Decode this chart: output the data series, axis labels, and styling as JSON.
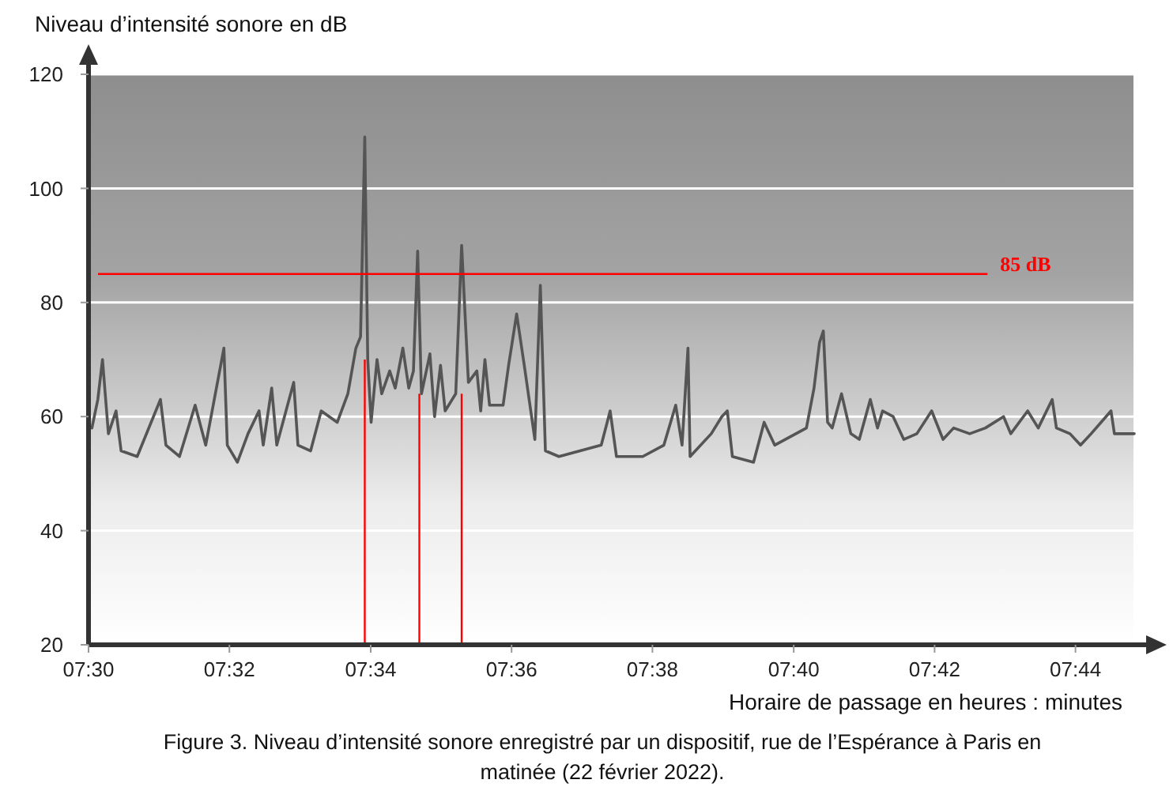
{
  "chart_data": {
    "type": "line",
    "ylabel": "Niveau d’intensité sonore en dB",
    "xlabel": "Horaire de passage en heures : minutes",
    "annotations": [
      "Figure 3. Niveau d’intensité sonore enregistré par un dispositif, rue de l’Espérance à Paris en matinée (22 février 2022)."
    ],
    "xlim": [
      7.5,
      7.75
    ],
    "ylim": [
      20,
      120
    ],
    "xticks": [
      {
        "value": 7.5,
        "label": "07:30"
      },
      {
        "value": 7.5333,
        "label": "07:32"
      },
      {
        "value": 7.5667,
        "label": "07:34"
      },
      {
        "value": 7.6,
        "label": "07:36"
      },
      {
        "value": 7.6333,
        "label": "07:38"
      },
      {
        "value": 7.6667,
        "label": "07:40"
      },
      {
        "value": 7.7,
        "label": "07:42"
      },
      {
        "value": 7.7333,
        "label": "07:44"
      }
    ],
    "yticks": [
      20,
      40,
      60,
      80,
      100,
      120
    ],
    "grid": "y",
    "marker": "none",
    "line_style": "solid",
    "ref_lines": [
      {
        "axis": "y",
        "value": 85,
        "label": "85 dB",
        "color": "#ff0000"
      },
      {
        "axis": "x",
        "value": 7.5653,
        "color": "#ff0000"
      },
      {
        "axis": "x",
        "value": 7.5782,
        "color": "#ff0000"
      },
      {
        "axis": "x",
        "value": 7.5882,
        "color": "#ff0000"
      }
    ],
    "series": [
      {
        "color": "#555555",
        "x": [
          7.5008,
          7.5022,
          7.5033,
          7.5047,
          7.5065,
          7.5077,
          7.5115,
          7.517,
          7.5183,
          7.5215,
          7.5252,
          7.5277,
          7.532,
          7.5328,
          7.5352,
          7.5377,
          7.5403,
          7.5413,
          7.5433,
          7.5445,
          7.5485,
          7.5495,
          7.5525,
          7.555,
          7.5588,
          7.5613,
          7.5632,
          7.5643,
          7.5653,
          7.566,
          7.5668,
          7.5682,
          7.5693,
          7.5712,
          7.5725,
          7.5743,
          7.5757,
          7.5768,
          7.5778,
          7.5787,
          7.5807,
          7.5818,
          7.5832,
          7.5843,
          7.5868,
          7.5882,
          7.5898,
          7.5918,
          7.5927,
          7.5937,
          7.5948,
          7.598,
          7.5993,
          7.6012,
          7.603,
          7.6055,
          7.6068,
          7.608,
          7.6112,
          7.6162,
          7.6212,
          7.6233,
          7.6248,
          7.631,
          7.636,
          7.6388,
          7.6403,
          7.6417,
          7.6422,
          7.6472,
          7.6497,
          7.651,
          7.6522,
          7.6572,
          7.6597,
          7.6622,
          7.6672,
          7.6697,
          7.6715,
          7.6728,
          7.6737,
          7.6747,
          7.6758,
          7.678,
          7.6802,
          7.6822,
          7.6848,
          7.6865,
          7.6877,
          7.6902,
          7.6927,
          7.6958,
          7.6993,
          7.702,
          7.7045,
          7.7083,
          7.712,
          7.7163,
          7.718,
          7.722,
          7.7245,
          7.7278,
          7.7288,
          7.732,
          7.7345,
          7.737,
          7.7417,
          7.7425,
          7.7472
        ],
        "values": [
          58,
          63,
          70,
          57,
          61,
          54,
          53,
          63,
          55,
          53,
          62,
          55,
          72,
          55,
          52,
          57,
          61,
          55,
          65,
          55,
          66,
          55,
          54,
          61,
          59,
          64,
          72,
          74,
          109,
          70,
          59,
          70,
          64,
          68,
          65,
          72,
          65,
          68,
          89,
          64,
          71,
          60,
          69,
          61,
          64,
          90,
          66,
          68,
          61,
          70,
          62,
          62,
          69,
          78,
          69,
          56,
          83,
          54,
          53,
          54,
          55,
          61,
          53,
          53,
          55,
          62,
          55,
          72,
          53,
          57,
          60,
          61,
          53,
          52,
          59,
          55,
          57,
          58,
          65,
          73,
          75,
          59,
          58,
          64,
          57,
          56,
          63,
          58,
          61,
          60,
          56,
          57,
          61,
          56,
          58,
          57,
          58,
          60,
          57,
          61,
          58,
          63,
          58,
          57,
          55,
          57,
          61,
          57,
          57
        ]
      }
    ]
  }
}
